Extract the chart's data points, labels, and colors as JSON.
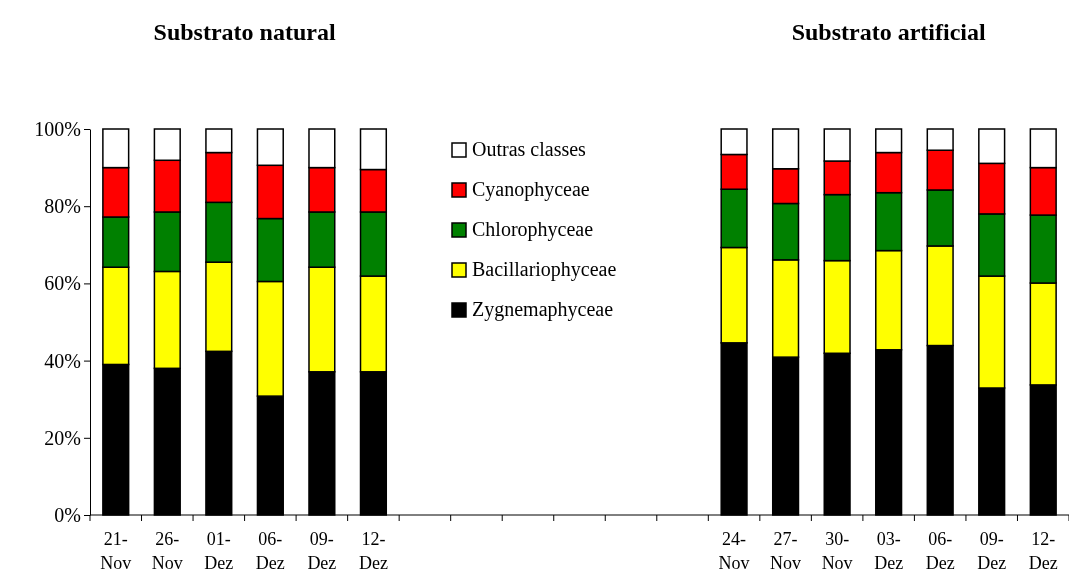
{
  "chart_data": {
    "type": "bar",
    "stacked": true,
    "annotations": [
      "Substrato natural",
      "Substrato artificial"
    ],
    "categories": [
      "21-Nov",
      "26-Nov",
      "01-Dez",
      "06-Dez",
      "09-Dez",
      "12-Dez",
      null,
      null,
      null,
      null,
      null,
      null,
      "24-Nov",
      "27-Nov",
      "30-Nov",
      "03-Dez",
      "06-Dez",
      "09-Dez",
      "12-Dez"
    ],
    "series": [
      {
        "name": "Zygnemaphyceae",
        "color": "#000000",
        "values": [
          39.0,
          38.0,
          42.4,
          30.8,
          37.1,
          37.1,
          null,
          null,
          null,
          null,
          null,
          null,
          44.6,
          40.9,
          41.9,
          42.8,
          43.9,
          32.9,
          33.7
        ]
      },
      {
        "name": "Bacillariophyceae",
        "color": "#ffff00",
        "values": [
          25.2,
          25.1,
          23.1,
          29.7,
          27.1,
          24.8,
          null,
          null,
          null,
          null,
          null,
          null,
          24.7,
          25.2,
          24.0,
          25.7,
          25.8,
          29.0,
          26.4
        ]
      },
      {
        "name": "Chlorophyceae",
        "color": "#008000",
        "values": [
          13.0,
          15.4,
          15.5,
          16.3,
          14.3,
          16.6,
          null,
          null,
          null,
          null,
          null,
          null,
          15.1,
          14.6,
          17.1,
          15.0,
          14.5,
          16.1,
          17.6
        ]
      },
      {
        "name": "Cyanophyceae",
        "color": "#ff0000",
        "values": [
          12.8,
          13.4,
          12.9,
          13.8,
          11.5,
          11.0,
          null,
          null,
          null,
          null,
          null,
          null,
          9.0,
          9.0,
          8.7,
          10.4,
          10.3,
          13.1,
          12.3
        ]
      },
      {
        "name": "Outras classes",
        "color": "#ffffff",
        "values": [
          10.0,
          8.1,
          6.1,
          9.4,
          10.0,
          10.5,
          null,
          null,
          null,
          null,
          null,
          null,
          6.6,
          10.3,
          8.3,
          6.1,
          5.5,
          8.9,
          10.0
        ]
      }
    ],
    "ylim": [
      0,
      100
    ],
    "yticks": [
      {
        "value": 0,
        "label": "0%"
      },
      {
        "value": 20,
        "label": "20%"
      },
      {
        "value": 40,
        "label": "40%"
      },
      {
        "value": 60,
        "label": "60%"
      },
      {
        "value": 80,
        "label": "80%"
      },
      {
        "value": 100,
        "label": "100%"
      }
    ],
    "legend": "top",
    "grid": false
  }
}
